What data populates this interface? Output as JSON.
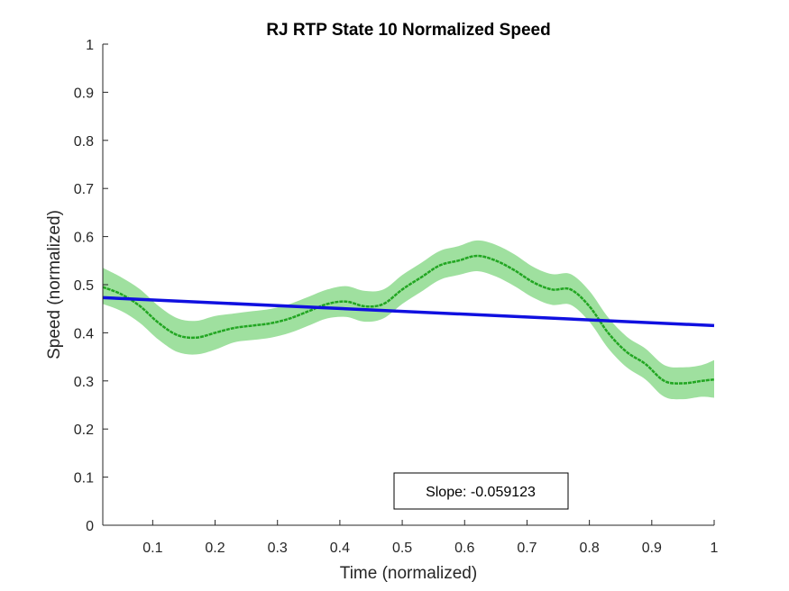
{
  "chart_data": {
    "type": "line",
    "title": "RJ  RTP State 10 Normalized Speed",
    "xlabel": "Time (normalized)",
    "ylabel": "Speed (normalized)",
    "xlim": [
      0.02,
      1.0
    ],
    "ylim": [
      0,
      1
    ],
    "xticks": [
      0.1,
      0.2,
      0.3,
      0.4,
      0.5,
      0.6,
      0.7,
      0.8,
      0.9,
      1
    ],
    "xtick_labels": [
      "0.1",
      "0.2",
      "0.3",
      "0.4",
      "0.5",
      "0.6",
      "0.7",
      "0.8",
      "0.9",
      "1"
    ],
    "yticks": [
      0,
      0.1,
      0.2,
      0.3,
      0.4,
      0.5,
      0.6,
      0.7,
      0.8,
      0.9,
      1
    ],
    "ytick_labels": [
      "0",
      "0.1",
      "0.2",
      "0.3",
      "0.4",
      "0.5",
      "0.6",
      "0.7",
      "0.8",
      "0.9",
      "1"
    ],
    "grid": false,
    "series": [
      {
        "kind": "mean_with_band",
        "color": "#22a622",
        "band_color": "#9fe09f",
        "x": [
          0.02,
          0.05,
          0.08,
          0.11,
          0.14,
          0.17,
          0.2,
          0.23,
          0.26,
          0.29,
          0.32,
          0.35,
          0.38,
          0.41,
          0.44,
          0.47,
          0.5,
          0.53,
          0.56,
          0.59,
          0.62,
          0.65,
          0.68,
          0.71,
          0.74,
          0.77,
          0.8,
          0.83,
          0.86,
          0.89,
          0.92,
          0.95,
          0.98,
          1.0
        ],
        "y": [
          0.495,
          0.48,
          0.455,
          0.42,
          0.395,
          0.39,
          0.4,
          0.41,
          0.415,
          0.42,
          0.43,
          0.445,
          0.46,
          0.465,
          0.455,
          0.46,
          0.49,
          0.515,
          0.54,
          0.55,
          0.56,
          0.55,
          0.53,
          0.505,
          0.49,
          0.49,
          0.455,
          0.4,
          0.36,
          0.335,
          0.3,
          0.295,
          0.3,
          0.303
        ],
        "upper": [
          0.535,
          0.515,
          0.49,
          0.455,
          0.43,
          0.425,
          0.435,
          0.44,
          0.445,
          0.45,
          0.46,
          0.475,
          0.49,
          0.497,
          0.487,
          0.49,
          0.52,
          0.545,
          0.57,
          0.58,
          0.592,
          0.583,
          0.563,
          0.537,
          0.522,
          0.522,
          0.487,
          0.432,
          0.392,
          0.367,
          0.333,
          0.328,
          0.333,
          0.343
        ],
        "lower": [
          0.46,
          0.445,
          0.42,
          0.385,
          0.36,
          0.355,
          0.365,
          0.38,
          0.385,
          0.39,
          0.4,
          0.415,
          0.43,
          0.433,
          0.423,
          0.43,
          0.46,
          0.485,
          0.51,
          0.52,
          0.528,
          0.517,
          0.497,
          0.473,
          0.458,
          0.458,
          0.423,
          0.368,
          0.328,
          0.303,
          0.267,
          0.262,
          0.267,
          0.265
        ]
      },
      {
        "kind": "trend_line",
        "color": "#1010e0",
        "x": [
          0.02,
          1.0
        ],
        "y": [
          0.473,
          0.415
        ]
      }
    ],
    "annotation": {
      "text": "Slope: -0.059123",
      "position": "bottom-center"
    }
  }
}
